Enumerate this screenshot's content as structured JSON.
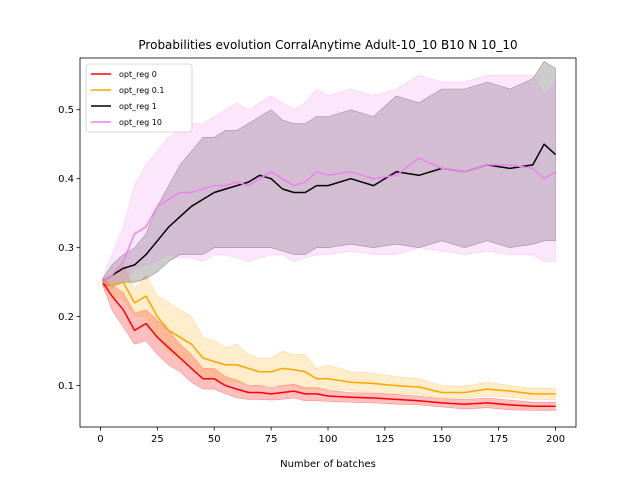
{
  "chart_data": {
    "type": "line",
    "title": "Probabilities evolution CorralAnytime Adult-10_10 B10 N 10_10",
    "xlabel": "Number of batches",
    "ylabel": "",
    "xlim": [
      -9,
      209
    ],
    "ylim": [
      0.04,
      0.575
    ],
    "xticks": [
      0,
      25,
      50,
      75,
      100,
      125,
      150,
      175,
      200
    ],
    "yticks": [
      0.1,
      0.2,
      0.3,
      0.4,
      0.5
    ],
    "grid": false,
    "legend_position": "top-left",
    "series": [
      {
        "name": "opt_reg 0",
        "color": "#ff0000",
        "x": [
          1,
          5,
          10,
          15,
          20,
          25,
          30,
          35,
          40,
          45,
          50,
          55,
          60,
          65,
          70,
          75,
          80,
          85,
          90,
          95,
          100,
          110,
          120,
          130,
          140,
          150,
          160,
          170,
          180,
          190,
          200
        ],
        "mean": [
          0.25,
          0.23,
          0.21,
          0.18,
          0.19,
          0.17,
          0.155,
          0.14,
          0.125,
          0.11,
          0.11,
          0.1,
          0.095,
          0.09,
          0.09,
          0.088,
          0.09,
          0.092,
          0.088,
          0.088,
          0.085,
          0.083,
          0.082,
          0.08,
          0.078,
          0.075,
          0.073,
          0.075,
          0.072,
          0.07,
          0.07
        ],
        "lower": [
          0.245,
          0.21,
          0.185,
          0.16,
          0.165,
          0.145,
          0.13,
          0.12,
          0.105,
          0.095,
          0.095,
          0.088,
          0.082,
          0.08,
          0.08,
          0.079,
          0.08,
          0.082,
          0.078,
          0.078,
          0.077,
          0.076,
          0.075,
          0.073,
          0.072,
          0.069,
          0.066,
          0.068,
          0.065,
          0.064,
          0.064
        ],
        "upper": [
          0.255,
          0.245,
          0.235,
          0.205,
          0.21,
          0.195,
          0.18,
          0.16,
          0.145,
          0.125,
          0.125,
          0.113,
          0.108,
          0.1,
          0.1,
          0.097,
          0.1,
          0.102,
          0.097,
          0.097,
          0.093,
          0.09,
          0.089,
          0.087,
          0.085,
          0.081,
          0.08,
          0.082,
          0.079,
          0.076,
          0.076
        ]
      },
      {
        "name": "opt_reg 0.1",
        "color": "#ffa500",
        "x": [
          1,
          5,
          10,
          15,
          20,
          25,
          30,
          35,
          40,
          45,
          50,
          55,
          60,
          65,
          70,
          75,
          80,
          85,
          90,
          95,
          100,
          110,
          120,
          130,
          140,
          150,
          160,
          170,
          180,
          190,
          200
        ],
        "mean": [
          0.25,
          0.245,
          0.25,
          0.22,
          0.23,
          0.2,
          0.18,
          0.17,
          0.16,
          0.14,
          0.135,
          0.13,
          0.13,
          0.125,
          0.12,
          0.12,
          0.125,
          0.123,
          0.12,
          0.11,
          0.11,
          0.105,
          0.103,
          0.1,
          0.098,
          0.09,
          0.09,
          0.095,
          0.092,
          0.088,
          0.088
        ],
        "lower": [
          0.245,
          0.23,
          0.225,
          0.2,
          0.2,
          0.17,
          0.15,
          0.14,
          0.13,
          0.115,
          0.11,
          0.105,
          0.105,
          0.1,
          0.1,
          0.1,
          0.1,
          0.1,
          0.095,
          0.095,
          0.095,
          0.093,
          0.09,
          0.088,
          0.088,
          0.082,
          0.082,
          0.085,
          0.083,
          0.08,
          0.08
        ],
        "upper": [
          0.255,
          0.26,
          0.275,
          0.24,
          0.26,
          0.23,
          0.22,
          0.21,
          0.2,
          0.17,
          0.165,
          0.155,
          0.16,
          0.145,
          0.14,
          0.14,
          0.15,
          0.145,
          0.145,
          0.125,
          0.13,
          0.12,
          0.118,
          0.113,
          0.11,
          0.1,
          0.099,
          0.105,
          0.1,
          0.096,
          0.096
        ]
      },
      {
        "name": "opt_reg 1",
        "color": "#000000",
        "x": [
          1,
          5,
          10,
          15,
          20,
          25,
          30,
          35,
          40,
          45,
          50,
          55,
          60,
          65,
          70,
          75,
          80,
          85,
          90,
          95,
          100,
          110,
          120,
          130,
          140,
          150,
          160,
          170,
          180,
          190,
          195,
          200
        ],
        "mean": [
          0.25,
          0.26,
          0.27,
          0.275,
          0.29,
          0.31,
          0.33,
          0.345,
          0.36,
          0.37,
          0.38,
          0.385,
          0.39,
          0.395,
          0.405,
          0.4,
          0.385,
          0.38,
          0.38,
          0.39,
          0.39,
          0.4,
          0.39,
          0.41,
          0.405,
          0.415,
          0.41,
          0.42,
          0.415,
          0.42,
          0.45,
          0.435
        ],
        "lower": [
          0.245,
          0.245,
          0.25,
          0.25,
          0.255,
          0.265,
          0.28,
          0.29,
          0.29,
          0.29,
          0.3,
          0.3,
          0.3,
          0.3,
          0.3,
          0.3,
          0.295,
          0.29,
          0.29,
          0.3,
          0.3,
          0.305,
          0.3,
          0.305,
          0.3,
          0.31,
          0.3,
          0.31,
          0.3,
          0.305,
          0.31,
          0.31
        ],
        "upper": [
          0.255,
          0.275,
          0.29,
          0.3,
          0.32,
          0.36,
          0.39,
          0.42,
          0.44,
          0.46,
          0.46,
          0.47,
          0.47,
          0.48,
          0.49,
          0.5,
          0.485,
          0.48,
          0.48,
          0.49,
          0.49,
          0.5,
          0.49,
          0.52,
          0.51,
          0.53,
          0.53,
          0.54,
          0.53,
          0.545,
          0.57,
          0.56
        ]
      },
      {
        "name": "opt_reg 10",
        "color": "#ee82ee",
        "x": [
          1,
          5,
          10,
          15,
          20,
          25,
          30,
          35,
          40,
          45,
          50,
          55,
          60,
          65,
          70,
          75,
          80,
          85,
          90,
          95,
          100,
          110,
          120,
          130,
          140,
          150,
          160,
          170,
          180,
          190,
          195,
          200
        ],
        "mean": [
          0.25,
          0.26,
          0.28,
          0.32,
          0.33,
          0.36,
          0.37,
          0.38,
          0.38,
          0.385,
          0.39,
          0.39,
          0.395,
          0.39,
          0.4,
          0.41,
          0.4,
          0.39,
          0.395,
          0.41,
          0.405,
          0.41,
          0.4,
          0.405,
          0.43,
          0.415,
          0.41,
          0.42,
          0.42,
          0.415,
          0.4,
          0.41
        ],
        "lower": [
          0.245,
          0.24,
          0.25,
          0.27,
          0.275,
          0.28,
          0.29,
          0.285,
          0.285,
          0.28,
          0.29,
          0.29,
          0.285,
          0.28,
          0.285,
          0.29,
          0.29,
          0.28,
          0.285,
          0.29,
          0.29,
          0.295,
          0.29,
          0.29,
          0.3,
          0.295,
          0.29,
          0.295,
          0.29,
          0.29,
          0.28,
          0.28
        ],
        "upper": [
          0.255,
          0.29,
          0.33,
          0.39,
          0.42,
          0.44,
          0.46,
          0.47,
          0.48,
          0.48,
          0.49,
          0.5,
          0.51,
          0.5,
          0.51,
          0.52,
          0.51,
          0.5,
          0.51,
          0.53,
          0.52,
          0.53,
          0.52,
          0.53,
          0.55,
          0.54,
          0.54,
          0.55,
          0.55,
          0.55,
          0.52,
          0.54
        ]
      }
    ]
  }
}
